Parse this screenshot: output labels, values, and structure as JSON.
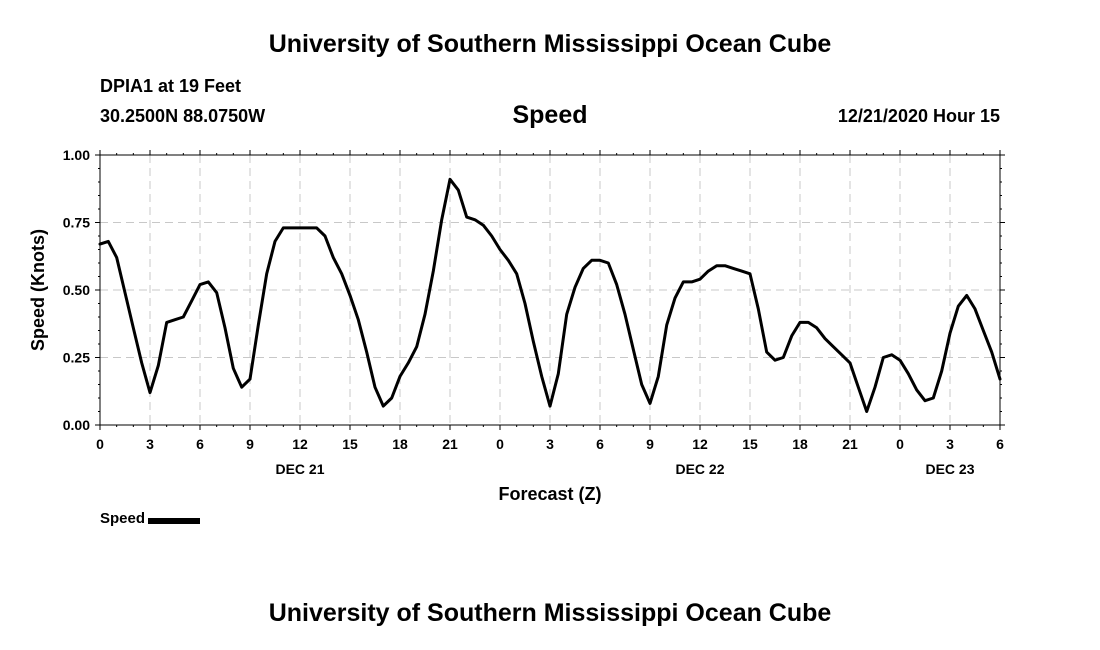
{
  "header": {
    "title": "University of Southern Mississippi Ocean Cube",
    "station": "DPIA1 at 19 Feet",
    "coords": "30.2500N 88.0750W",
    "variable": "Speed",
    "datetime": "12/21/2020 Hour 15"
  },
  "footer": {
    "title": "University of Southern Mississippi Ocean Cube"
  },
  "legend": {
    "label": "Speed",
    "color": "#000000"
  },
  "chart_data": {
    "type": "line",
    "title": "Speed",
    "xlabel": "Forecast (Z)",
    "ylabel": "Speed (Knots)",
    "ylim": [
      0,
      1
    ],
    "xlim": [
      0,
      54
    ],
    "grid": true,
    "y_ticks": [
      "0.00",
      "0.25",
      "0.50",
      "0.75",
      "1.00"
    ],
    "x_ticks": [
      "0",
      "3",
      "6",
      "9",
      "12",
      "15",
      "18",
      "21",
      "0",
      "3",
      "6",
      "9",
      "12",
      "15",
      "18",
      "21",
      "0",
      "3",
      "6"
    ],
    "date_labels": [
      {
        "hour": 12,
        "label": "DEC 21"
      },
      {
        "hour": 36,
        "label": "DEC 22"
      },
      {
        "hour": 51,
        "label": "DEC 23"
      }
    ],
    "series": [
      {
        "name": "Speed",
        "color": "#000000",
        "x": [
          0,
          0.5,
          1,
          1.5,
          2,
          2.5,
          3,
          3.5,
          4,
          4.5,
          5,
          5.5,
          6,
          6.5,
          7,
          7.5,
          8,
          8.5,
          9,
          9.5,
          10,
          10.5,
          11,
          11.5,
          12,
          12.5,
          13,
          13.5,
          14,
          14.5,
          15,
          15.5,
          16,
          16.5,
          17,
          17.5,
          18,
          18.5,
          19,
          19.5,
          20,
          20.5,
          21,
          21.5,
          22,
          22.5,
          23,
          23.5,
          24,
          24.5,
          25,
          25.5,
          26,
          26.5,
          27,
          27.5,
          28,
          28.5,
          29,
          29.5,
          30,
          30.5,
          31,
          31.5,
          32,
          32.5,
          33,
          33.5,
          34,
          34.5,
          35,
          35.5,
          36,
          36.5,
          37,
          37.5,
          38,
          38.5,
          39,
          39.5,
          40,
          40.5,
          41,
          41.5,
          42,
          42.5,
          43,
          43.5,
          44,
          44.5,
          45,
          45.5,
          46,
          46.5,
          47,
          47.5,
          48,
          48.5,
          49,
          49.5,
          50,
          50.5,
          51,
          51.5,
          52,
          52.5,
          53,
          53.5,
          54
        ],
        "values": [
          0.67,
          0.68,
          0.62,
          0.49,
          0.36,
          0.23,
          0.12,
          0.22,
          0.38,
          0.39,
          0.4,
          0.46,
          0.52,
          0.53,
          0.49,
          0.36,
          0.21,
          0.14,
          0.17,
          0.37,
          0.56,
          0.68,
          0.73,
          0.73,
          0.73,
          0.73,
          0.73,
          0.7,
          0.62,
          0.56,
          0.48,
          0.39,
          0.27,
          0.14,
          0.07,
          0.1,
          0.18,
          0.23,
          0.29,
          0.41,
          0.57,
          0.76,
          0.91,
          0.87,
          0.77,
          0.76,
          0.74,
          0.7,
          0.65,
          0.61,
          0.56,
          0.45,
          0.31,
          0.18,
          0.07,
          0.19,
          0.41,
          0.51,
          0.58,
          0.61,
          0.61,
          0.6,
          0.52,
          0.41,
          0.28,
          0.15,
          0.08,
          0.18,
          0.37,
          0.47,
          0.53,
          0.53,
          0.54,
          0.57,
          0.59,
          0.59,
          0.58,
          0.57,
          0.56,
          0.43,
          0.27,
          0.24,
          0.25,
          0.33,
          0.38,
          0.38,
          0.36,
          0.32,
          0.29,
          0.26,
          0.23,
          0.14,
          0.05,
          0.14,
          0.25,
          0.26,
          0.24,
          0.19,
          0.13,
          0.09,
          0.1,
          0.2,
          0.34,
          0.44,
          0.48,
          0.43,
          0.35,
          0.27,
          0.17
        ]
      }
    ]
  }
}
